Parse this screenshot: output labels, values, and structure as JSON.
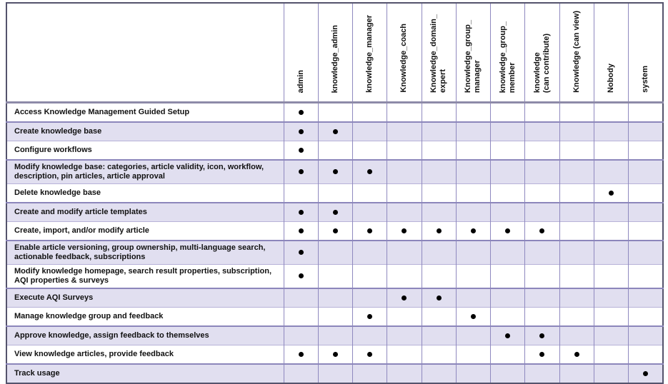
{
  "colors": {
    "band_row_bg": "#e1dff0",
    "light_row_bg": "#ffffff",
    "grid_line": "#8f89bf",
    "band_row_top_border": "#8c86bb",
    "light_row_top_border": "#b7b2d8",
    "header_separator": "#8d8aa8",
    "outer_border": "#54536c",
    "bullet": "#000000",
    "text": "#111111"
  },
  "matrix": {
    "corner_label": "",
    "columns": [
      "admin",
      "knowledge_admin",
      "knowledge_manager",
      "Knowledge_coach",
      "Knowledge_domain_\nexpert",
      "Knowledge_group_\nmanager",
      "knowledge_group_\nmember",
      "knowledge\n(can contribute)",
      "Knowledge (can view)",
      "Nobody",
      "system"
    ],
    "rows": [
      {
        "label": "Access Knowledge Management Guided Setup",
        "marks": [
          1,
          0,
          0,
          0,
          0,
          0,
          0,
          0,
          0,
          0,
          0
        ]
      },
      {
        "label": "Create knowledge base",
        "marks": [
          1,
          1,
          0,
          0,
          0,
          0,
          0,
          0,
          0,
          0,
          0
        ]
      },
      {
        "label": "Configure workflows",
        "marks": [
          1,
          0,
          0,
          0,
          0,
          0,
          0,
          0,
          0,
          0,
          0
        ]
      },
      {
        "label": "Modify knowledge base: categories, article validity, icon, workflow, description, pin articles, article approval",
        "marks": [
          1,
          1,
          1,
          0,
          0,
          0,
          0,
          0,
          0,
          0,
          0
        ]
      },
      {
        "label": "Delete knowledge base",
        "marks": [
          0,
          0,
          0,
          0,
          0,
          0,
          0,
          0,
          0,
          1,
          0
        ]
      },
      {
        "label": "Create and modify article templates",
        "marks": [
          1,
          1,
          0,
          0,
          0,
          0,
          0,
          0,
          0,
          0,
          0
        ]
      },
      {
        "label": "Create, import, and/or modify article",
        "marks": [
          1,
          1,
          1,
          1,
          1,
          1,
          1,
          1,
          0,
          0,
          0
        ]
      },
      {
        "label": "Enable article versioning, group ownership, multi-language search, actionable feedback, subscriptions",
        "marks": [
          1,
          0,
          0,
          0,
          0,
          0,
          0,
          0,
          0,
          0,
          0
        ]
      },
      {
        "label": "Modify knowledge homepage, search result properties, subscription, AQI properties & surveys",
        "marks": [
          1,
          0,
          0,
          0,
          0,
          0,
          0,
          0,
          0,
          0,
          0
        ]
      },
      {
        "label": "Execute AQI Surveys",
        "marks": [
          0,
          0,
          0,
          1,
          1,
          0,
          0,
          0,
          0,
          0,
          0
        ]
      },
      {
        "label": "Manage knowledge group and feedback",
        "marks": [
          0,
          0,
          1,
          0,
          0,
          1,
          0,
          0,
          0,
          0,
          0
        ]
      },
      {
        "label": "Approve knowledge, assign feedback to themselves",
        "marks": [
          0,
          0,
          0,
          0,
          0,
          0,
          1,
          1,
          0,
          0,
          0
        ]
      },
      {
        "label": "View knowledge articles, provide feedback",
        "marks": [
          1,
          1,
          1,
          0,
          0,
          0,
          0,
          1,
          1,
          0,
          0
        ]
      },
      {
        "label": "Track usage",
        "marks": [
          0,
          0,
          0,
          0,
          0,
          0,
          0,
          0,
          0,
          0,
          1
        ]
      }
    ]
  }
}
